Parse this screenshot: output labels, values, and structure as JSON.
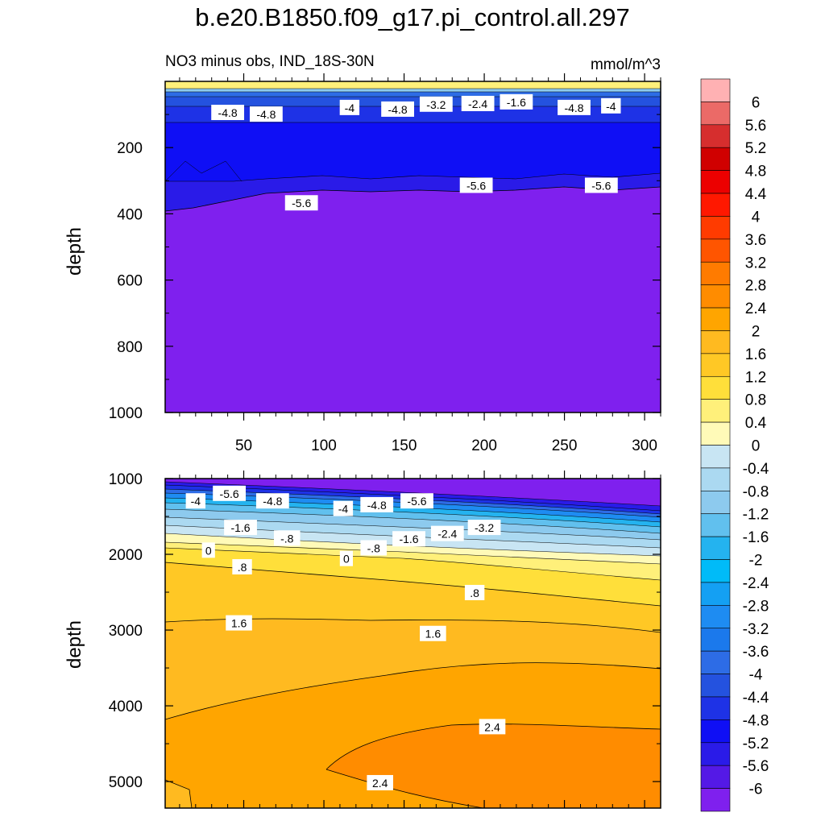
{
  "chart_data": {
    "type": "heatmap",
    "title": "b.e20.B1850.f09_g17.pi_control.all.297",
    "subtitle_left": "NO3 minus obs, IND_18S-30N",
    "subtitle_right": "mmol/m^3",
    "colorbar": {
      "labels": [
        "6",
        "5.6",
        "5.2",
        "4.8",
        "4.4",
        "4",
        "3.6",
        "3.2",
        "2.8",
        "2.4",
        "2",
        "1.6",
        "1.2",
        "0.8",
        "0.4",
        "0",
        "-0.4",
        "-0.8",
        "-1.2",
        "-1.6",
        "-2",
        "-2.4",
        "-2.8",
        "-3.2",
        "-3.6",
        "-4",
        "-4.4",
        "-4.8",
        "-5.2",
        "-5.6",
        "-6"
      ],
      "levels": [
        6,
        5.6,
        5.2,
        4.8,
        4.4,
        4,
        3.6,
        3.2,
        2.8,
        2.4,
        2,
        1.6,
        1.2,
        0.8,
        0.4,
        0,
        -0.4,
        -0.8,
        -1.2,
        -1.6,
        -2,
        -2.4,
        -2.8,
        -3.2,
        -3.6,
        -4,
        -4.4,
        -4.8,
        -5.2,
        -5.6,
        -6
      ],
      "colors": [
        "#FFB1B3",
        "#EB6A67",
        "#D62E2E",
        "#D00000",
        "#EC0000",
        "#FF1800",
        "#FF3B00",
        "#FF5500",
        "#FF7B00",
        "#FF8C00",
        "#FFA500",
        "#FFBA20",
        "#FFC825",
        "#FFDF3A",
        "#FFF07A",
        "#FFFAB8",
        "#C8E5F3",
        "#ABD9F1",
        "#8DCAEE",
        "#61C0EE",
        "#24B3EF",
        "#00BBF8",
        "#14A0F3",
        "#1E8CF2",
        "#1B79EC",
        "#2D6CE6",
        "#2452DF",
        "#1E32E6",
        "#0F0FF5",
        "#2A1BE8",
        "#5419E6",
        "#7F20EE"
      ]
    },
    "panels": [
      {
        "name": "upper",
        "ylabel": "depth",
        "ylim": [
          0,
          1000
        ],
        "yticks": [
          200,
          400,
          600,
          800,
          1000
        ],
        "ytick_labels": [
          "200",
          "400",
          "600",
          "800",
          "1000"
        ],
        "xlim": [
          1,
          310
        ],
        "xticks": [
          50,
          100,
          150,
          200,
          250,
          300
        ],
        "xtick_labels": [
          "50",
          "100",
          "150",
          "200",
          "250",
          "300"
        ],
        "contour_labels": [
          {
            "text": "-4.8",
            "x": 40,
            "y": 95
          },
          {
            "text": "-4.8",
            "x": 64,
            "y": 100
          },
          {
            "text": "-4",
            "x": 116,
            "y": 80
          },
          {
            "text": "-4.8",
            "x": 146,
            "y": 85
          },
          {
            "text": "-3.2",
            "x": 170,
            "y": 70
          },
          {
            "text": "-2.4",
            "x": 196,
            "y": 68
          },
          {
            "text": "-1.6",
            "x": 220,
            "y": 63
          },
          {
            "text": "-4.8",
            "x": 256,
            "y": 80
          },
          {
            "text": "-4",
            "x": 279,
            "y": 75
          },
          {
            "text": "-5.6",
            "x": 86,
            "y": 368
          },
          {
            "text": "-5.6",
            "x": 195,
            "y": 315
          },
          {
            "text": "-5.6",
            "x": 273,
            "y": 315
          }
        ]
      },
      {
        "name": "lower",
        "ylabel": "depth",
        "ylim": [
          1000,
          5350
        ],
        "yticks": [
          1000,
          2000,
          3000,
          4000,
          5000
        ],
        "ytick_labels": [
          "1000",
          "2000",
          "3000",
          "4000",
          "5000"
        ],
        "contour_labels": [
          {
            "text": "-4",
            "x": 20,
            "y": 1300
          },
          {
            "text": "-5.6",
            "x": 41,
            "y": 1200
          },
          {
            "text": "-4.8",
            "x": 68,
            "y": 1300
          },
          {
            "text": "-4",
            "x": 112,
            "y": 1400
          },
          {
            "text": "-4.8",
            "x": 133,
            "y": 1350
          },
          {
            "text": "-5.6",
            "x": 158,
            "y": 1300
          },
          {
            "text": "-1.6",
            "x": 48,
            "y": 1650
          },
          {
            "text": "-.8",
            "x": 77,
            "y": 1790
          },
          {
            "text": "0",
            "x": 28,
            "y": 1950
          },
          {
            "text": "-.8",
            "x": 131,
            "y": 1920
          },
          {
            "text": "-1.6",
            "x": 153,
            "y": 1800
          },
          {
            "text": "-2.4",
            "x": 177,
            "y": 1730
          },
          {
            "text": "-3.2",
            "x": 200,
            "y": 1650
          },
          {
            "text": "0",
            "x": 114,
            "y": 2060
          },
          {
            "text": ".8",
            "x": 49,
            "y": 2170
          },
          {
            "text": ".8",
            "x": 194,
            "y": 2510
          },
          {
            "text": "1.6",
            "x": 47,
            "y": 2910
          },
          {
            "text": "1.6",
            "x": 168,
            "y": 3050
          },
          {
            "text": "2.4",
            "x": 205,
            "y": 4280
          },
          {
            "text": "2.4",
            "x": 135,
            "y": 5020
          }
        ]
      }
    ]
  }
}
